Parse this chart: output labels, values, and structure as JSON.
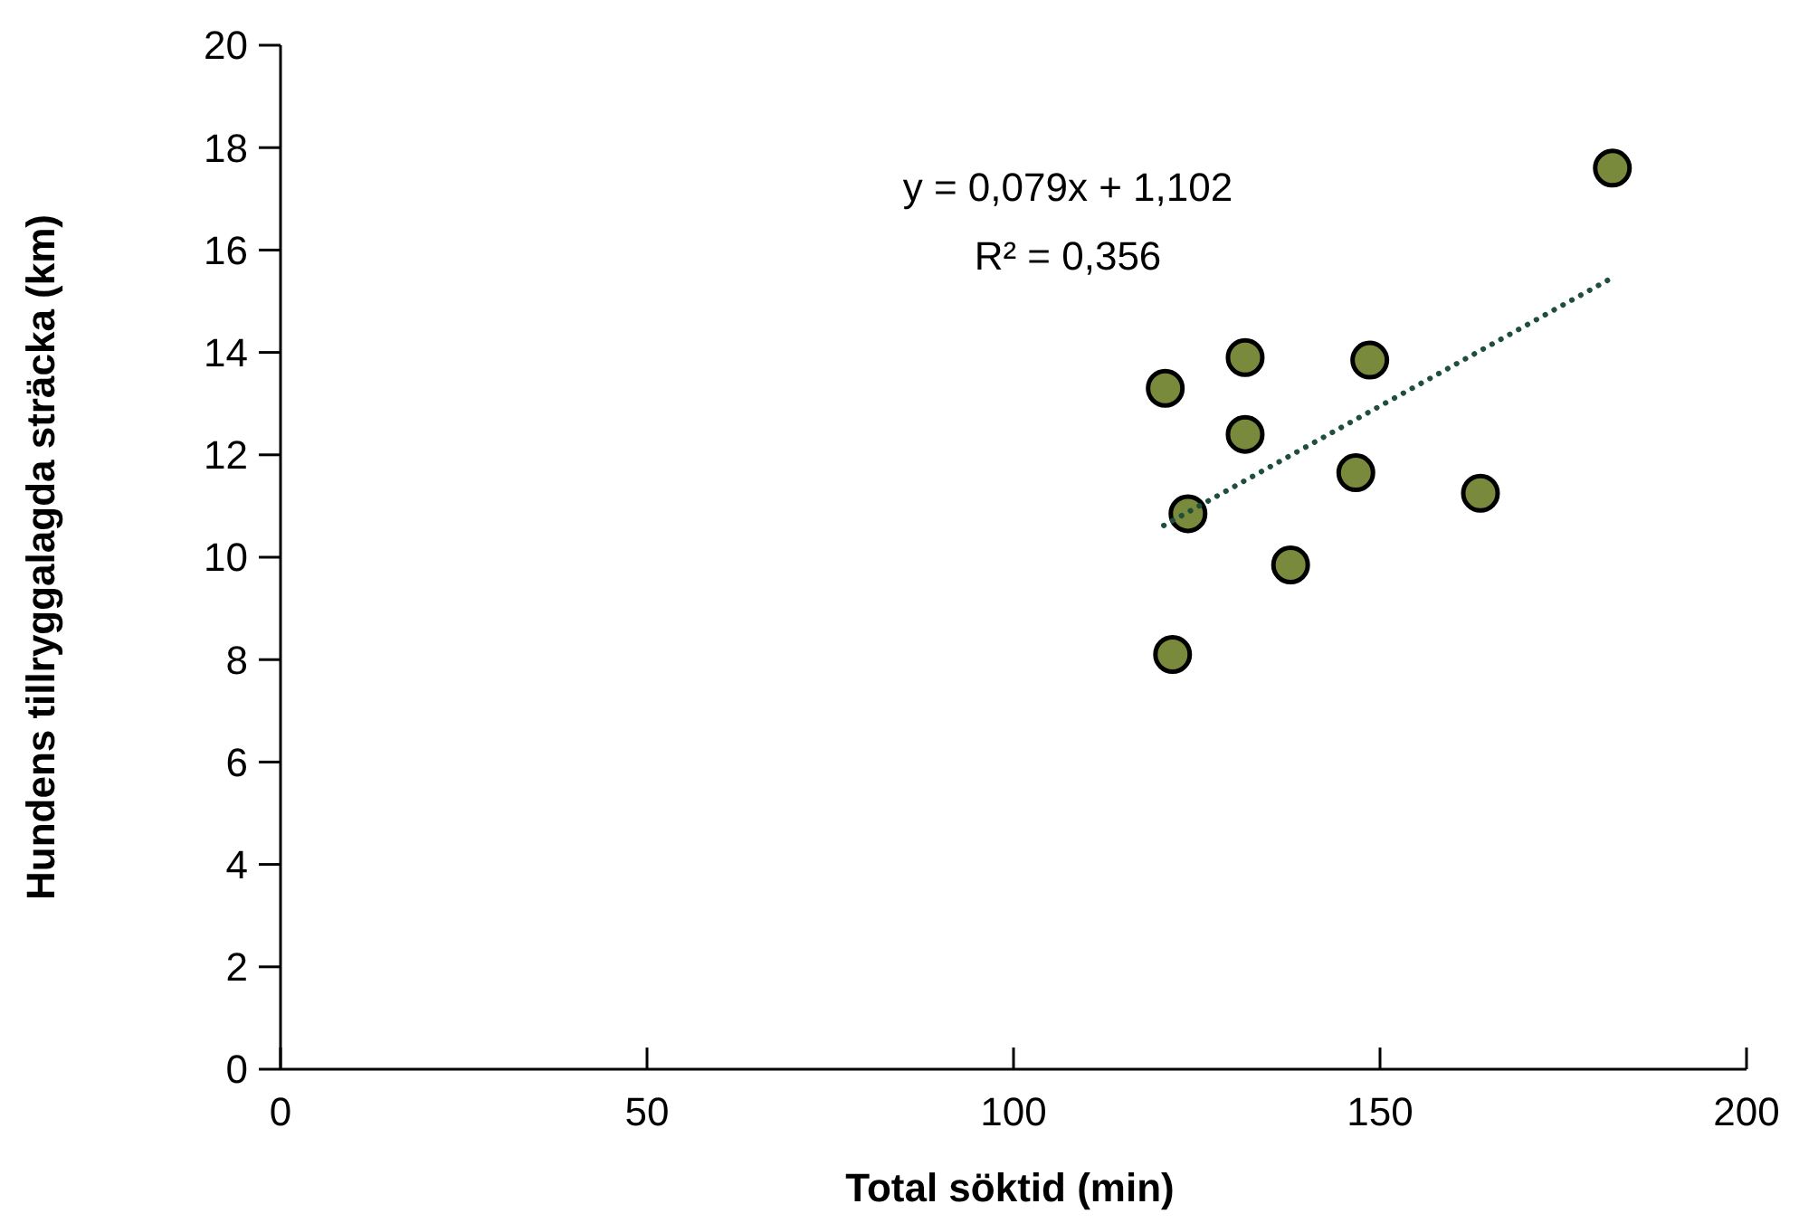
{
  "chart_data": {
    "type": "scatter",
    "xlabel": "Total söktid (min)",
    "ylabel": "Hundens tillryggalagda sträcka (km)",
    "xlim": [
      0,
      200
    ],
    "xticks": [
      0,
      50,
      100,
      150,
      200
    ],
    "ylim": [
      0,
      20
    ],
    "yticks": [
      0,
      2,
      4,
      6,
      8,
      10,
      12,
      14,
      16,
      18,
      20
    ],
    "grid": false,
    "marker": "circle",
    "annotations": [
      "y = 0,079x + 1,102",
      "R² = 0,356"
    ],
    "series": [
      {
        "color": "#7a8a3c",
        "x": [
          120.7,
          131.6,
          148.6,
          131.6,
          146.7,
          123.8,
          163.7,
          137.8,
          121.7,
          181.7
        ],
        "values": [
          13.3,
          13.9,
          13.85,
          12.4,
          11.65,
          10.85,
          11.25,
          9.85,
          8.1,
          17.6
        ]
      },
      {
        "type": "line",
        "color": "#1f4e3d",
        "line_style": "dotted",
        "marker": "none",
        "x": [
          120.5,
          181.7
        ],
        "values": [
          10.62,
          15.46
        ]
      }
    ]
  }
}
